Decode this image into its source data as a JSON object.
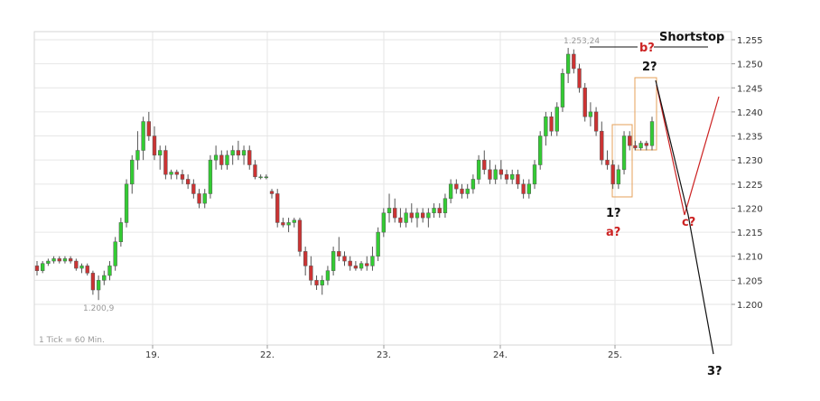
{
  "chart_data": {
    "type": "candlestick",
    "title": "",
    "x_tick_labels": [
      "19.",
      "22.",
      "23.",
      "24.",
      "25."
    ],
    "y_ticks": [
      1.2,
      1.205,
      1.21,
      1.215,
      1.22,
      1.225,
      1.23,
      1.235,
      1.24,
      1.245,
      1.25,
      1.255
    ],
    "y_tick_labels": [
      "1.200",
      "1.205",
      "1.210",
      "1.215",
      "1.220",
      "1.225",
      "1.230",
      "1.235",
      "1.240",
      "1.245",
      "1.250",
      "1.255"
    ],
    "ylim": [
      1.193,
      1.263
    ],
    "grid": true,
    "interval_note": "1 Tick = 60 Min.",
    "low_label": "1.200,9",
    "high_label": "1.253,24",
    "colors": {
      "up": "#33cc33",
      "down": "#cc3333",
      "wick": "#555555",
      "box": "#e6a15a",
      "projection_black": "#111111",
      "projection_red": "#cc2222",
      "grid": "#e6e6e6"
    },
    "candles": [
      [
        1.208,
        1.209,
        1.206,
        1.207
      ],
      [
        1.207,
        1.209,
        1.2065,
        1.2085
      ],
      [
        1.2085,
        1.2095,
        1.208,
        1.209
      ],
      [
        1.209,
        1.21,
        1.2085,
        1.2095
      ],
      [
        1.2095,
        1.21,
        1.2085,
        1.209
      ],
      [
        1.209,
        1.21,
        1.2085,
        1.2095
      ],
      [
        1.2095,
        1.21,
        1.2085,
        1.209
      ],
      [
        1.209,
        1.2095,
        1.207,
        1.2075
      ],
      [
        1.2075,
        1.2085,
        1.2065,
        1.208
      ],
      [
        1.208,
        1.2085,
        1.206,
        1.2065
      ],
      [
        1.2065,
        1.207,
        1.202,
        1.203
      ],
      [
        1.203,
        1.206,
        1.2009,
        1.205
      ],
      [
        1.205,
        1.207,
        1.204,
        1.206
      ],
      [
        1.206,
        1.209,
        1.205,
        1.208
      ],
      [
        1.208,
        1.214,
        1.207,
        1.213
      ],
      [
        1.213,
        1.218,
        1.212,
        1.217
      ],
      [
        1.217,
        1.226,
        1.216,
        1.225
      ],
      [
        1.225,
        1.231,
        1.223,
        1.23
      ],
      [
        1.23,
        1.236,
        1.228,
        1.232
      ],
      [
        1.232,
        1.239,
        1.23,
        1.238
      ],
      [
        1.238,
        1.24,
        1.234,
        1.235
      ],
      [
        1.235,
        1.237,
        1.23,
        1.231
      ],
      [
        1.231,
        1.233,
        1.228,
        1.232
      ],
      [
        1.232,
        1.233,
        1.226,
        1.227
      ],
      [
        1.227,
        1.228,
        1.226,
        1.2275
      ],
      [
        1.2275,
        1.228,
        1.226,
        1.227
      ],
      [
        1.227,
        1.228,
        1.225,
        1.226
      ],
      [
        1.226,
        1.227,
        1.224,
        1.225
      ],
      [
        1.225,
        1.226,
        1.222,
        1.223
      ],
      [
        1.223,
        1.224,
        1.22,
        1.221
      ],
      [
        1.221,
        1.224,
        1.22,
        1.223
      ],
      [
        1.223,
        1.231,
        1.222,
        1.23
      ],
      [
        1.23,
        1.233,
        1.228,
        1.231
      ],
      [
        1.231,
        1.232,
        1.228,
        1.229
      ],
      [
        1.229,
        1.232,
        1.228,
        1.231
      ],
      [
        1.231,
        1.233,
        1.229,
        1.232
      ],
      [
        1.232,
        1.234,
        1.23,
        1.231
      ],
      [
        1.231,
        1.233,
        1.229,
        1.232
      ],
      [
        1.232,
        1.233,
        1.228,
        1.229
      ],
      [
        1.229,
        1.23,
        1.226,
        1.2265
      ],
      [
        1.2265,
        1.227,
        1.226,
        1.2265
      ],
      [
        1.2265,
        1.227,
        1.226,
        1.2265
      ],
      [
        1.2235,
        1.224,
        1.222,
        1.223
      ],
      [
        1.223,
        1.224,
        1.216,
        1.217
      ],
      [
        1.217,
        1.218,
        1.216,
        1.2165
      ],
      [
        1.2165,
        1.218,
        1.215,
        1.217
      ],
      [
        1.217,
        1.218,
        1.216,
        1.2175
      ],
      [
        1.2175,
        1.218,
        1.21,
        1.211
      ],
      [
        1.211,
        1.212,
        1.206,
        1.208
      ],
      [
        1.208,
        1.21,
        1.204,
        1.205
      ],
      [
        1.205,
        1.206,
        1.203,
        1.204
      ],
      [
        1.204,
        1.206,
        1.202,
        1.205
      ],
      [
        1.205,
        1.208,
        1.204,
        1.207
      ],
      [
        1.207,
        1.212,
        1.206,
        1.211
      ],
      [
        1.211,
        1.214,
        1.209,
        1.21
      ],
      [
        1.21,
        1.211,
        1.208,
        1.209
      ],
      [
        1.209,
        1.21,
        1.207,
        1.208
      ],
      [
        1.208,
        1.209,
        1.207,
        1.2075
      ],
      [
        1.2075,
        1.209,
        1.207,
        1.2085
      ],
      [
        1.2085,
        1.21,
        1.207,
        1.208
      ],
      [
        1.208,
        1.212,
        1.207,
        1.21
      ],
      [
        1.21,
        1.216,
        1.209,
        1.215
      ],
      [
        1.215,
        1.22,
        1.214,
        1.219
      ],
      [
        1.219,
        1.223,
        1.217,
        1.22
      ],
      [
        1.22,
        1.222,
        1.217,
        1.218
      ],
      [
        1.218,
        1.22,
        1.216,
        1.217
      ],
      [
        1.217,
        1.22,
        1.216,
        1.219
      ],
      [
        1.219,
        1.221,
        1.217,
        1.218
      ],
      [
        1.218,
        1.22,
        1.216,
        1.219
      ],
      [
        1.219,
        1.22,
        1.217,
        1.218
      ],
      [
        1.218,
        1.22,
        1.216,
        1.219
      ],
      [
        1.219,
        1.221,
        1.218,
        1.22
      ],
      [
        1.22,
        1.221,
        1.218,
        1.219
      ],
      [
        1.219,
        1.223,
        1.218,
        1.222
      ],
      [
        1.222,
        1.226,
        1.221,
        1.225
      ],
      [
        1.225,
        1.226,
        1.223,
        1.224
      ],
      [
        1.224,
        1.225,
        1.222,
        1.223
      ],
      [
        1.223,
        1.225,
        1.222,
        1.224
      ],
      [
        1.224,
        1.227,
        1.223,
        1.226
      ],
      [
        1.226,
        1.231,
        1.225,
        1.23
      ],
      [
        1.23,
        1.232,
        1.227,
        1.228
      ],
      [
        1.228,
        1.23,
        1.225,
        1.226
      ],
      [
        1.226,
        1.229,
        1.225,
        1.228
      ],
      [
        1.228,
        1.23,
        1.226,
        1.227
      ],
      [
        1.227,
        1.228,
        1.225,
        1.226
      ],
      [
        1.226,
        1.228,
        1.225,
        1.227
      ],
      [
        1.227,
        1.228,
        1.224,
        1.225
      ],
      [
        1.225,
        1.226,
        1.222,
        1.223
      ],
      [
        1.223,
        1.226,
        1.222,
        1.225
      ],
      [
        1.225,
        1.23,
        1.224,
        1.229
      ],
      [
        1.229,
        1.236,
        1.228,
        1.235
      ],
      [
        1.235,
        1.24,
        1.233,
        1.239
      ],
      [
        1.239,
        1.24,
        1.235,
        1.236
      ],
      [
        1.236,
        1.242,
        1.235,
        1.241
      ],
      [
        1.241,
        1.249,
        1.24,
        1.248
      ],
      [
        1.248,
        1.2533,
        1.246,
        1.252
      ],
      [
        1.252,
        1.253,
        1.248,
        1.249
      ],
      [
        1.249,
        1.25,
        1.244,
        1.245
      ],
      [
        1.245,
        1.246,
        1.238,
        1.239
      ],
      [
        1.239,
        1.242,
        1.237,
        1.24
      ],
      [
        1.24,
        1.241,
        1.235,
        1.236
      ],
      [
        1.236,
        1.238,
        1.229,
        1.23
      ],
      [
        1.23,
        1.232,
        1.228,
        1.229
      ],
      [
        1.229,
        1.23,
        1.224,
        1.225
      ],
      [
        1.225,
        1.229,
        1.224,
        1.228
      ],
      [
        1.228,
        1.236,
        1.227,
        1.235
      ],
      [
        1.235,
        1.236,
        1.232,
        1.233
      ],
      [
        1.233,
        1.234,
        1.232,
        1.2325
      ],
      [
        1.2325,
        1.234,
        1.232,
        1.2335
      ],
      [
        1.2335,
        1.234,
        1.232,
        1.233
      ],
      [
        1.233,
        1.239,
        1.232,
        1.238
      ]
    ],
    "annotations": {
      "shortstop": "Shortstop",
      "b": "b?",
      "two": "2?",
      "one": "1?",
      "a": "a?",
      "c": "c?",
      "three": "3?"
    }
  }
}
